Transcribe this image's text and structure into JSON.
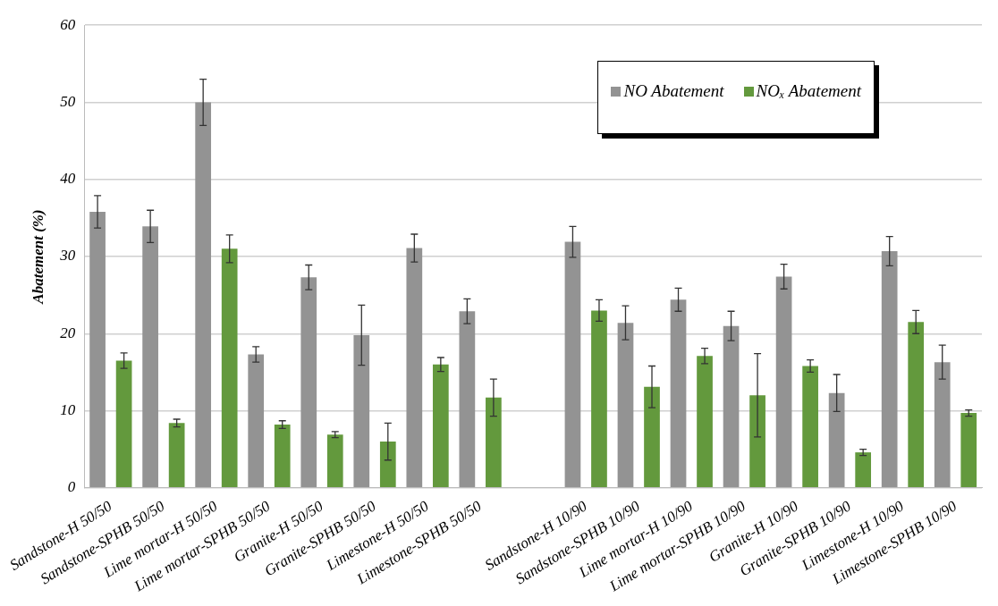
{
  "chart_data": {
    "type": "bar",
    "ylabel": "Abatement (%)",
    "categories": [
      "Sandstone-H 50/50",
      "Sandstone-SPHB 50/50",
      "Lime mortar-H 50/50",
      "Lime mortar-SPHB 50/50",
      "Granite-H 50/50",
      "Granite-SPHB 50/50",
      "Limestone-H 50/50",
      "Limestone-SPHB 50/50",
      null,
      "Sandstone-H 10/90",
      "Sandstone-SPHB 10/90",
      "Lime mortar-H 10/90",
      "Lime mortar-SPHB 10/90",
      "Granite-H 10/90",
      "Granite-SPHB 10/90",
      "Limestone-H 10/90",
      "Limestone-SPHB 10/90"
    ],
    "series": [
      {
        "name": "NO Abatement",
        "color": "#939393",
        "values": [
          35.8,
          33.9,
          50,
          17.3,
          27.3,
          19.8,
          31.1,
          22.9,
          null,
          31.9,
          21.4,
          24.4,
          21,
          27.4,
          12.3,
          30.7,
          16.3
        ],
        "errors": [
          2.1,
          2.1,
          3,
          1,
          1.6,
          3.9,
          1.8,
          1.6,
          null,
          2,
          2.2,
          1.5,
          1.9,
          1.6,
          2.4,
          1.9,
          2.2
        ]
      },
      {
        "name": "NOₓ Abatement",
        "color": "#63993d",
        "values": [
          16.5,
          8.4,
          31,
          8.2,
          6.9,
          6,
          16,
          11.7,
          null,
          23,
          13.1,
          17.1,
          12,
          15.8,
          4.6,
          21.5,
          9.7
        ],
        "errors": [
          1,
          0.5,
          1.8,
          0.5,
          0.4,
          2.4,
          0.9,
          2.4,
          null,
          1.4,
          2.7,
          1,
          5.4,
          0.8,
          0.4,
          1.5,
          0.4
        ]
      }
    ],
    "ylim": [
      0,
      60
    ],
    "yticks": [
      0,
      10,
      20,
      30,
      40,
      50,
      60
    ],
    "grid": "y",
    "legend": "top right"
  }
}
